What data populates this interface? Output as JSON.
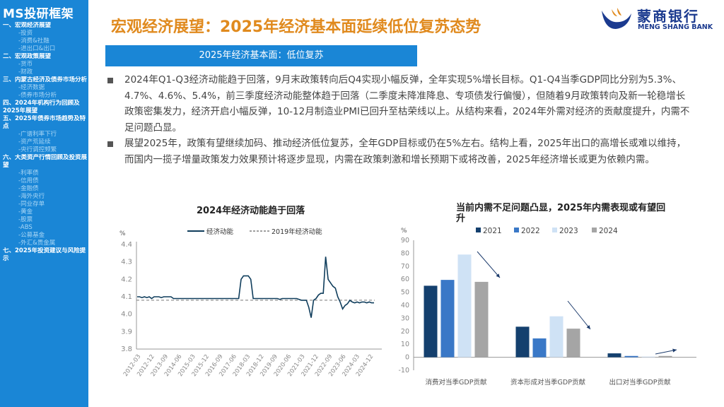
{
  "sidebar": {
    "title": "MS投研框架",
    "items": [
      {
        "label": "一、宏观经济展望",
        "level": "section",
        "active": true
      },
      {
        "label": "-投资",
        "level": "sub"
      },
      {
        "label": "-消费&社融",
        "level": "sub"
      },
      {
        "label": "-进出口&出口",
        "level": "sub"
      },
      {
        "label": "二、宏观政策展望",
        "level": "section"
      },
      {
        "label": "-货币",
        "level": "sub"
      },
      {
        "label": "-财政",
        "level": "sub"
      },
      {
        "label": "三、内蒙古经济及债券市场分析",
        "level": "section"
      },
      {
        "label": "-经济数据",
        "level": "sub"
      },
      {
        "label": "-债券市场分析",
        "level": "sub"
      },
      {
        "label": "四、2024年机构行为回顾及2025年展望",
        "level": "section"
      },
      {
        "label": "五、2025年债券市场趋势及特点",
        "level": "section"
      },
      {
        "label": "-广谱利率下行",
        "level": "sub"
      },
      {
        "label": "-资产荒延续",
        "level": "sub"
      },
      {
        "label": "-央行调控频繁",
        "level": "sub"
      },
      {
        "label": "六、大类资产行情回顾及投资展望",
        "level": "section"
      },
      {
        "label": "-利率债",
        "level": "sub"
      },
      {
        "label": "-信用债",
        "level": "sub"
      },
      {
        "label": "-金融债",
        "level": "sub"
      },
      {
        "label": "-海外央行",
        "level": "sub"
      },
      {
        "label": "-同业存单",
        "level": "sub"
      },
      {
        "label": "-黄金",
        "level": "sub"
      },
      {
        "label": "-股票",
        "level": "sub"
      },
      {
        "label": "-ABS",
        "level": "sub"
      },
      {
        "label": "-公募基金",
        "level": "sub"
      },
      {
        "label": "-外汇&贵金属",
        "level": "sub"
      },
      {
        "label": "七、2025年投资建议与风险提示",
        "level": "section"
      }
    ]
  },
  "header": {
    "title": "宏观经济展望：2025年经济基本面延续低位复苏态势",
    "logo_cn": "蒙商银行",
    "logo_en": "MENG SHANG BANK",
    "brand_color": "#1b3a8f",
    "accent_color": "#e08a1e"
  },
  "section_band": "2025年经济基本面：低位复苏",
  "paragraphs": [
    "2024年Q1-Q3经济动能趋于回落，9月末政策转向后Q4实现小幅反弹，全年实现5%增长目标。Q1-Q4当季GDP同比分别为5.3%、4.7%、4.6%、5.4%，前三季度经济动能整体趋于回落（二季度未降准降息、专项债发行偏慢），但随着9月政策转向及新一轮稳增长政策密集发力，经济开启小幅反弹，10-12月制造业PMI已回升至枯荣线以上。从结构来看，2024年外需对经济的贡献度提升，内需不足问题凸显。",
    "展望2025年，政策有望继续加码、推动经济低位复苏，全年GDP目标或仍在5%左右。结构上看，2025年出口的高增长或难以维持，而国内一揽子增量政策发力效果预计将逐步显现，内需在政策刺激和增长预期下或将改善，2025年经济增长或更为依赖内需。"
  ],
  "chart_data": [
    {
      "type": "line",
      "title": "2024年经济动能趋于回落",
      "unit": "%",
      "ylim": [
        3.8,
        4.4
      ],
      "yticks": [
        "4.4",
        "4.3",
        "4.2",
        "4.1",
        "4.0",
        "3.9",
        "3.8"
      ],
      "xticks": [
        "2012-03",
        "2012-12",
        "2013-09",
        "2014-06",
        "2015-03",
        "2015-12",
        "2016-09",
        "2017-06",
        "2018-03",
        "2018-12",
        "2019-09",
        "2020-06",
        "2021-03",
        "2021-12",
        "2022-09",
        "2023-06",
        "2024-03",
        "2024-12"
      ],
      "legend": [
        "经济动能",
        "2019年经济动能"
      ],
      "baseline": 4.08,
      "series": [
        {
          "name": "经济动能",
          "values": [
            4.1,
            4.1,
            4.09,
            4.1,
            4.1,
            4.1,
            4.11,
            4.1,
            4.1,
            4.1,
            4.1,
            4.09,
            4.1,
            4.1,
            4.1,
            4.09,
            4.1,
            4.1,
            4.1,
            4.1,
            4.09,
            4.09,
            4.1,
            4.09,
            4.09,
            4.09,
            4.09,
            4.09,
            4.09,
            4.09,
            4.09,
            4.09,
            4.09,
            4.09,
            4.09,
            4.09,
            4.09,
            4.09,
            4.09,
            4.09,
            4.09,
            4.09,
            4.09,
            4.09,
            4.09,
            4.09,
            4.09,
            4.09,
            4.09,
            4.09,
            4.09,
            4.09,
            4.09,
            4.09,
            4.09,
            4.09,
            4.09,
            4.09,
            4.09,
            4.09,
            4.09,
            4.09,
            4.09,
            4.09,
            4.09,
            4.09,
            4.09,
            4.09,
            4.09,
            4.09,
            4.09,
            4.09,
            4.09,
            4.09,
            4.09,
            4.09,
            4.09,
            4.09,
            4.09,
            4.09,
            4.09,
            4.09,
            4.09,
            4.09,
            4.09,
            4.09,
            4.09,
            4.09,
            4.09,
            4.09,
            4.09,
            4.09,
            4.09,
            4.09,
            4.09,
            4.09,
            4.09,
            4.09,
            4.09,
            4.09,
            4.09,
            4.09,
            4.09,
            4.09,
            4.09,
            4.09,
            4.09,
            4.09,
            4.09,
            4.09,
            4.09,
            4.09,
            4.09,
            4.09,
            4.09,
            4.09,
            4.09,
            4.09,
            4.09,
            4.09,
            4.09,
            4.09,
            4.09,
            4.09,
            4.09,
            4.09,
            4.09,
            4.09,
            4.09,
            4.09,
            4.09,
            4.09,
            4.09,
            4.09,
            4.09,
            4.09,
            4.09,
            4.09,
            4.09,
            4.09,
            4.09,
            4.09,
            4.09,
            4.09,
            4.09,
            4.09,
            4.09,
            4.09,
            4.09
          ]
        },
        {
          "name": "经济动能",
          "values": [
            4.1,
            4.1,
            4.095,
            4.1,
            4.095,
            4.1,
            4.09,
            4.1,
            4.1,
            4.1,
            4.095,
            4.1,
            4.1,
            4.1,
            4.1,
            4.09,
            4.09,
            4.09,
            4.09,
            4.09,
            4.09,
            4.09,
            4.09,
            4.09,
            4.09,
            4.09,
            4.09,
            4.09,
            4.09,
            4.09,
            4.09,
            4.09,
            4.09,
            4.09,
            4.09,
            4.09,
            4.09,
            4.09,
            4.09,
            4.09,
            4.09,
            4.09,
            4.09,
            4.2,
            4.22,
            4.22,
            4.22,
            4.2,
            4.09,
            4.09,
            4.09,
            4.09,
            4.09,
            4.09,
            4.09,
            4.09,
            4.09,
            4.09,
            4.09,
            4.085,
            4.09,
            4.09,
            4.09,
            4.09,
            4.09,
            4.09,
            4.09,
            4.085,
            4.08,
            4.08,
            4.08,
            4.04,
            3.98,
            4.08,
            4.09,
            4.11,
            4.12,
            4.12,
            4.33,
            4.2,
            4.18,
            4.16,
            4.15,
            4.1,
            4.07,
            4.03,
            4.05,
            4.06,
            4.08,
            4.07,
            4.065,
            4.07,
            4.065,
            4.07,
            4.07,
            4.065,
            4.07,
            4.065,
            4.065
          ]
        }
      ]
    },
    {
      "type": "bar",
      "title": "当前内需不足问题凸显，2025年内需表现或有望回升",
      "unit": "%",
      "ylim": [
        -10,
        90
      ],
      "yticks": [
        "90",
        "80",
        "70",
        "60",
        "50",
        "40",
        "30",
        "20",
        "10",
        "0",
        "-10"
      ],
      "categories": [
        "消费对当季GDP贡献",
        "资本形成对当季GDP贡献",
        "出口对当季GDP贡献"
      ],
      "series": [
        {
          "name": "2021",
          "color": "#14406e",
          "values": [
            55,
            23.5,
            3
          ]
        },
        {
          "name": "2022",
          "color": "#3a78c7",
          "values": [
            59.5,
            14.5,
            1
          ]
        },
        {
          "name": "2023",
          "color": "#cfe2f5",
          "values": [
            79,
            31.5,
            0.5
          ]
        },
        {
          "name": "2024",
          "color": "#a5a5a5",
          "values": [
            58,
            22,
            1
          ]
        }
      ]
    }
  ]
}
